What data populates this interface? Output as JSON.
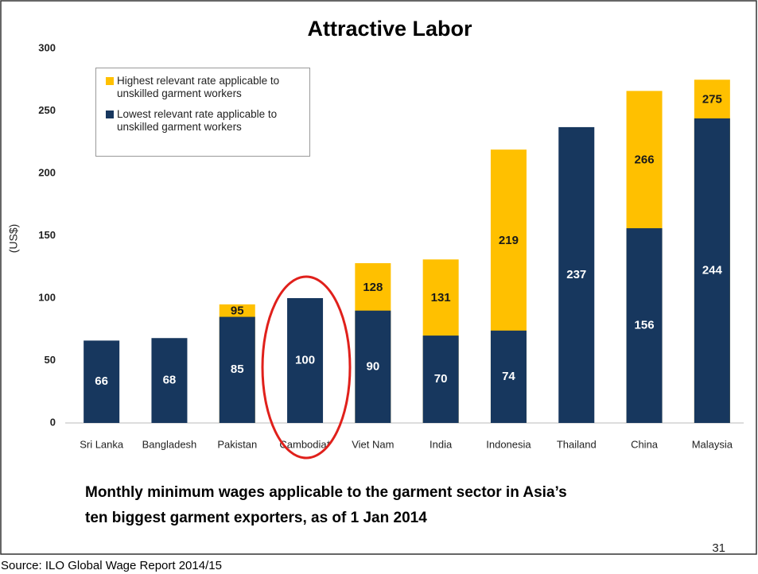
{
  "chart_data": {
    "type": "bar",
    "title": "Attractive Labor",
    "y_label": "(US$)",
    "categories": [
      "Sri Lanka",
      "Bangladesh",
      "Pakistan",
      "Cambodia*",
      "Viet Nam",
      "India",
      "Indonesia",
      "Thailand",
      "China",
      "Malaysia"
    ],
    "series": [
      {
        "name": "Highest relevant rate applicable to unskilled garment workers",
        "color": "#ffc000",
        "values": [
          null,
          null,
          95,
          null,
          128,
          131,
          219,
          null,
          266,
          275
        ]
      },
      {
        "name": "Lowest relevant rate applicable to unskilled garment workers",
        "color": "#17375e",
        "values": [
          66,
          68,
          85,
          100,
          90,
          70,
          74,
          237,
          156,
          244
        ]
      }
    ],
    "ylim": [
      0,
      300
    ],
    "yticks": [
      0,
      50,
      100,
      150,
      200,
      250,
      300
    ],
    "grid": false,
    "caption": [
      "Monthly minimum wages applicable to the garment sector in Asia’s",
      "ten biggest garment exporters, as of 1 Jan 2014"
    ],
    "page_number": "31",
    "source": "Source: ILO  Global Wage Report 2014/15"
  }
}
